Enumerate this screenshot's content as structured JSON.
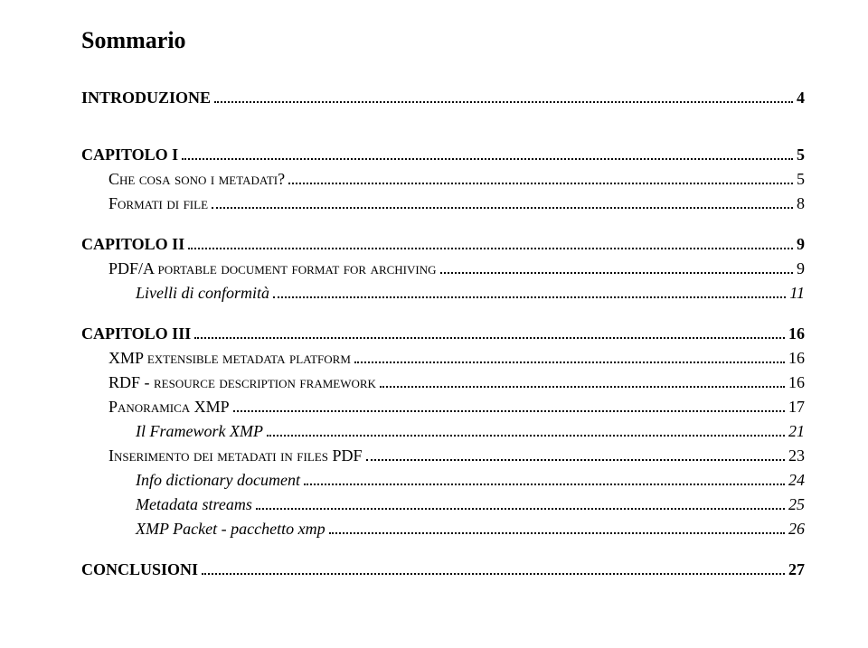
{
  "title": "Sommario",
  "toc": [
    {
      "label": "INTRODUZIONE",
      "page": "4",
      "bold": true,
      "indent": 0,
      "gapAfter": "large"
    },
    {
      "label": "CAPITOLO I",
      "page": "5",
      "bold": true,
      "indent": 0,
      "gapAfter": ""
    },
    {
      "label": "Che cosa sono i metadati?",
      "page": "5",
      "smallcaps": true,
      "indent": 1,
      "gapAfter": ""
    },
    {
      "label": "Formati di file",
      "page": "8",
      "smallcaps": true,
      "indent": 1,
      "gapAfter": "small"
    },
    {
      "label": "CAPITOLO II",
      "page": "9",
      "bold": true,
      "indent": 0,
      "gapAfter": ""
    },
    {
      "label": "PDF/A portable document format for archiving",
      "page": "9",
      "smallcaps": true,
      "indent": 1,
      "gapAfter": ""
    },
    {
      "label": "Livelli di conformità",
      "page": "11",
      "italic": true,
      "indent": 2,
      "gapAfter": "small"
    },
    {
      "label": "CAPITOLO III",
      "page": "16",
      "bold": true,
      "indent": 0,
      "gapAfter": ""
    },
    {
      "label": "XMP extensible metadata platform",
      "page": "16",
      "smallcaps": true,
      "indent": 1,
      "gapAfter": ""
    },
    {
      "label": "RDF - resource description framework",
      "page": "16",
      "smallcaps": true,
      "indent": 1,
      "gapAfter": ""
    },
    {
      "label": "Panoramica XMP",
      "page": "17",
      "smallcaps": true,
      "indent": 1,
      "gapAfter": ""
    },
    {
      "label": "Il Framework XMP",
      "page": "21",
      "italic": true,
      "indent": 2,
      "gapAfter": ""
    },
    {
      "label": "Inserimento dei metadati in files PDF",
      "page": "23",
      "smallcaps": true,
      "indent": 1,
      "gapAfter": ""
    },
    {
      "label": "Info dictionary document",
      "page": "24",
      "italic": true,
      "indent": 2,
      "gapAfter": ""
    },
    {
      "label": "Metadata streams",
      "page": "25",
      "italic": true,
      "indent": 2,
      "gapAfter": ""
    },
    {
      "label": "XMP Packet - pacchetto xmp",
      "page": "26",
      "italic": true,
      "indent": 2,
      "gapAfter": "small"
    },
    {
      "label": "CONCLUSIONI",
      "page": "27",
      "bold": true,
      "indent": 0,
      "gapAfter": ""
    }
  ]
}
